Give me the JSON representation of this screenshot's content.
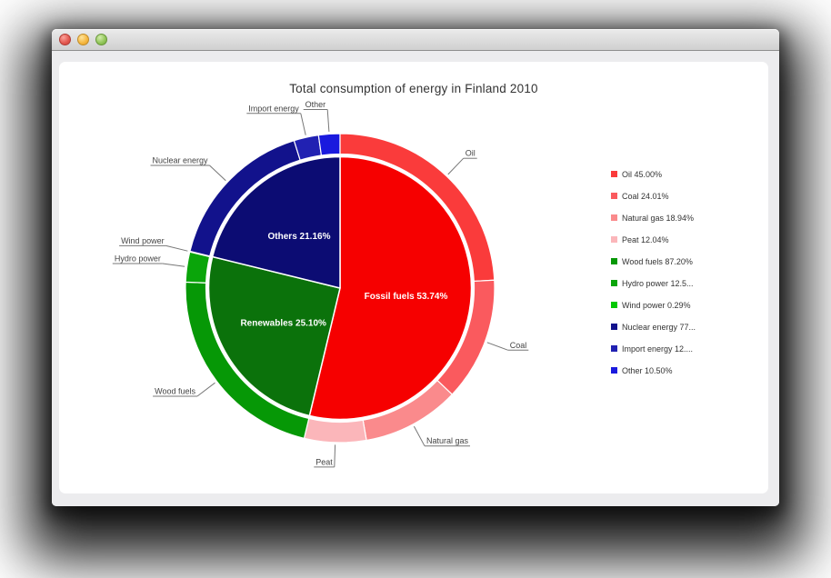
{
  "window": {
    "buttons": [
      {
        "name": "close",
        "color": "#e2564d"
      },
      {
        "name": "minimize",
        "color": "#f5b63d"
      },
      {
        "name": "zoom",
        "color": "#8fc456"
      }
    ]
  },
  "chart_data": {
    "type": "pie",
    "variant": "nested-donut",
    "title": "Total consumption of energy in Finland 2010",
    "legend_position": "right",
    "inner_series": {
      "name": "energy-groups",
      "segments": [
        {
          "label": "Fossil fuels",
          "value": 53.74,
          "display": "Fossil fuels 53.74%",
          "color": "#f60000"
        },
        {
          "label": "Renewables",
          "value": 25.1,
          "display": "Renewables 25.10%",
          "color": "#0b720b"
        },
        {
          "label": "Others",
          "value": 21.16,
          "display": "Others 21.16%",
          "color": "#0c0c73"
        }
      ]
    },
    "outer_series": {
      "name": "energy-sources",
      "segments": [
        {
          "label": "Oil",
          "parent": "Fossil fuels",
          "pct_of_parent": 45.0,
          "legend": "Oil 45.00%",
          "color": "#fa3b3b"
        },
        {
          "label": "Coal",
          "parent": "Fossil fuels",
          "pct_of_parent": 24.01,
          "legend": "Coal 24.01%",
          "color": "#fa5a5e"
        },
        {
          "label": "Natural gas",
          "parent": "Fossil fuels",
          "pct_of_parent": 18.94,
          "legend": "Natural gas 18.94%",
          "color": "#fa8a8c"
        },
        {
          "label": "Peat",
          "parent": "Fossil fuels",
          "pct_of_parent": 12.04,
          "legend": "Peat 12.04%",
          "color": "#fbb6ba"
        },
        {
          "label": "Wood fuels",
          "parent": "Renewables",
          "pct_of_parent": 87.2,
          "legend": "Wood fuels 87.20%",
          "color": "#069806"
        },
        {
          "label": "Hydro power",
          "parent": "Renewables",
          "pct_of_parent": 12.51,
          "legend": "Hydro power 12.5...",
          "color": "#0aa50a"
        },
        {
          "label": "Wind power",
          "parent": "Renewables",
          "pct_of_parent": 0.29,
          "legend": "Wind power 0.29%",
          "color": "#02c802"
        },
        {
          "label": "Nuclear energy",
          "parent": "Others",
          "pct_of_parent": 77.3,
          "legend": "Nuclear energy 77...",
          "color": "#12128c"
        },
        {
          "label": "Import energy",
          "parent": "Others",
          "pct_of_parent": 12.2,
          "legend": "Import energy 12....",
          "color": "#2121b2"
        },
        {
          "label": "Other",
          "parent": "Others",
          "pct_of_parent": 10.5,
          "legend": "Other 10.50%",
          "color": "#1a1ade"
        }
      ]
    }
  }
}
